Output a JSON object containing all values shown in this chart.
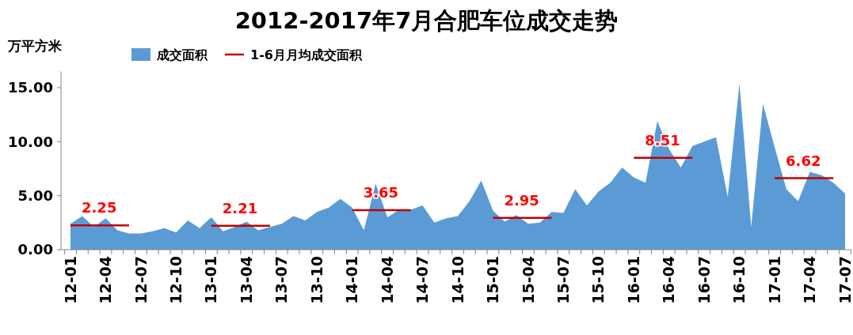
{
  "chart_data": {
    "type": "area",
    "title": "2012-2017年7月合肥车位成交走势",
    "ylabel": "万平方米",
    "categories": [
      "12-01",
      null,
      null,
      "12-04",
      null,
      null,
      "12-07",
      null,
      null,
      "12-10",
      null,
      null,
      "13-01",
      null,
      null,
      "13-04",
      null,
      null,
      "13-07",
      null,
      null,
      "13-10",
      null,
      null,
      "14-01",
      null,
      null,
      "14-04",
      null,
      null,
      "14-07",
      null,
      null,
      "14-10",
      null,
      null,
      "15-01",
      null,
      null,
      "15-04",
      null,
      null,
      "15-07",
      null,
      null,
      "15-10",
      null,
      null,
      "16-01",
      null,
      null,
      "16-04",
      null,
      null,
      "16-07",
      null,
      null,
      "16-10",
      null,
      null,
      "17-01",
      null,
      null,
      "17-04",
      null,
      null,
      "17-07"
    ],
    "series": [
      {
        "name": "成交面积",
        "color": "#5b9bd5",
        "values": [
          2.4,
          3.1,
          2.1,
          2.9,
          1.8,
          1.5,
          1.5,
          1.7,
          2.0,
          1.6,
          2.7,
          2.0,
          3.0,
          1.7,
          2.1,
          2.6,
          1.8,
          2.1,
          2.4,
          3.1,
          2.7,
          3.5,
          3.9,
          4.7,
          3.9,
          1.8,
          6.1,
          3.0,
          3.7,
          3.7,
          4.1,
          2.5,
          2.9,
          3.1,
          4.5,
          6.4,
          3.6,
          2.6,
          3.2,
          2.4,
          2.5,
          3.5,
          3.4,
          5.6,
          4.1,
          5.4,
          6.2,
          7.6,
          6.7,
          6.2,
          11.9,
          9.3,
          7.6,
          9.6,
          10.0,
          10.4,
          4.9,
          15.4,
          2.1,
          13.5,
          9.5,
          5.6,
          4.5,
          7.2,
          6.9,
          6.2,
          5.2
        ]
      },
      {
        "name": "1-6月月均成交面积",
        "type": "line",
        "color": "#c00000",
        "values": [
          2.25,
          2.25,
          2.25,
          2.25,
          2.25,
          2.25,
          null,
          null,
          null,
          null,
          null,
          null,
          2.21,
          2.21,
          2.21,
          2.21,
          2.21,
          2.21,
          null,
          null,
          null,
          null,
          null,
          null,
          3.65,
          3.65,
          3.65,
          3.65,
          3.65,
          3.65,
          null,
          null,
          null,
          null,
          null,
          null,
          2.95,
          2.95,
          2.95,
          2.95,
          2.95,
          2.95,
          null,
          null,
          null,
          null,
          null,
          null,
          8.51,
          8.51,
          8.51,
          8.51,
          8.51,
          8.51,
          null,
          null,
          null,
          null,
          null,
          null,
          6.62,
          6.62,
          6.62,
          6.62,
          6.62,
          6.62,
          null
        ]
      }
    ],
    "annotations": [
      {
        "text": "2.25",
        "x": "12-01",
        "y": 2.25
      },
      {
        "text": "2.21",
        "x": "13-01",
        "y": 2.21
      },
      {
        "text": "3.65",
        "x": "14-01",
        "y": 3.65
      },
      {
        "text": "2.95",
        "x": "15-01",
        "y": 2.95
      },
      {
        "text": "8.51",
        "x": "16-01",
        "y": 8.51
      },
      {
        "text": "6.62",
        "x": "17-01",
        "y": 6.62
      }
    ],
    "ylim": [
      0,
      16.5
    ],
    "yticks": [
      {
        "value": 0,
        "label": "0.00"
      },
      {
        "value": 5,
        "label": "5.00"
      },
      {
        "value": 10,
        "label": "10.00"
      },
      {
        "value": 15,
        "label": "15.00"
      }
    ],
    "legend": "top",
    "grid": false,
    "line_style": "solid",
    "marker": "none"
  }
}
